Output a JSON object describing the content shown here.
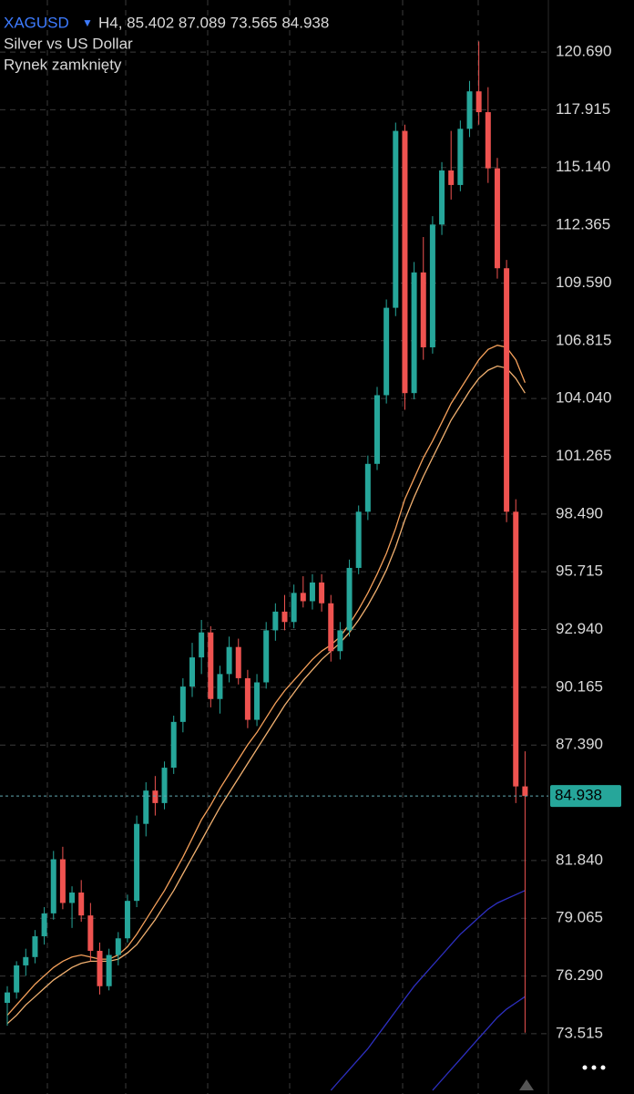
{
  "chart_data": {
    "type": "candlestick",
    "symbol": "XAGUSD",
    "header": "H4, 85.402 87.089 73.565 84.938",
    "title": "Silver vs US Dollar",
    "status": "Rynek zamknięty",
    "up_color": "#26a69a",
    "down_color": "#ef5350",
    "ylim": [
      70.62,
      123.19
    ],
    "yticks": [
      {
        "value": 120.69,
        "label": "120.690"
      },
      {
        "value": 117.915,
        "label": "117.915"
      },
      {
        "value": 115.14,
        "label": "115.140"
      },
      {
        "value": 112.365,
        "label": "112.365"
      },
      {
        "value": 109.59,
        "label": "109.590"
      },
      {
        "value": 106.815,
        "label": "106.815"
      },
      {
        "value": 104.04,
        "label": "104.040"
      },
      {
        "value": 101.265,
        "label": "101.265"
      },
      {
        "value": 98.49,
        "label": "98.490"
      },
      {
        "value": 95.715,
        "label": "95.715"
      },
      {
        "value": 92.94,
        "label": "92.940"
      },
      {
        "value": 90.165,
        "label": "90.165"
      },
      {
        "value": 87.39,
        "label": "87.390"
      },
      {
        "value": 81.84,
        "label": "81.840"
      },
      {
        "value": 79.065,
        "label": "79.065"
      },
      {
        "value": 76.29,
        "label": "76.290"
      },
      {
        "value": 73.515,
        "label": "73.515"
      }
    ],
    "grid": true,
    "last_price": 84.938,
    "ohlc": [
      [
        75.0,
        75.8,
        73.9,
        75.5
      ],
      [
        75.5,
        77.0,
        75.2,
        76.8
      ],
      [
        76.8,
        77.6,
        76.3,
        77.2
      ],
      [
        77.2,
        78.5,
        76.9,
        78.2
      ],
      [
        78.2,
        79.6,
        77.8,
        79.3
      ],
      [
        79.3,
        82.3,
        79.0,
        81.9
      ],
      [
        81.9,
        82.5,
        79.5,
        79.8
      ],
      [
        79.8,
        80.6,
        78.6,
        80.3
      ],
      [
        80.3,
        80.9,
        78.9,
        79.2
      ],
      [
        79.2,
        79.8,
        77.0,
        77.5
      ],
      [
        77.5,
        77.9,
        75.4,
        75.8
      ],
      [
        75.8,
        77.6,
        75.6,
        77.3
      ],
      [
        77.3,
        78.4,
        76.8,
        78.1
      ],
      [
        78.1,
        80.2,
        77.9,
        79.9
      ],
      [
        79.9,
        84.0,
        79.6,
        83.6
      ],
      [
        83.6,
        85.6,
        83.0,
        85.2
      ],
      [
        85.2,
        85.9,
        84.0,
        84.6
      ],
      [
        84.6,
        86.6,
        84.3,
        86.3
      ],
      [
        86.3,
        88.8,
        86.0,
        88.5
      ],
      [
        88.5,
        90.6,
        88.0,
        90.2
      ],
      [
        90.2,
        92.3,
        89.7,
        91.6
      ],
      [
        91.6,
        93.4,
        90.8,
        92.8
      ],
      [
        92.8,
        93.1,
        89.2,
        89.6
      ],
      [
        89.6,
        91.2,
        88.9,
        90.8
      ],
      [
        90.8,
        92.6,
        90.4,
        92.1
      ],
      [
        92.1,
        92.5,
        90.3,
        90.6
      ],
      [
        90.6,
        91.0,
        88.2,
        88.6
      ],
      [
        88.6,
        90.8,
        88.3,
        90.4
      ],
      [
        90.4,
        93.3,
        90.1,
        92.9
      ],
      [
        92.9,
        94.2,
        92.4,
        93.8
      ],
      [
        93.8,
        94.6,
        92.9,
        93.3
      ],
      [
        93.3,
        95.1,
        93.0,
        94.7
      ],
      [
        94.7,
        95.5,
        94.0,
        94.3
      ],
      [
        94.3,
        95.6,
        93.9,
        95.2
      ],
      [
        95.2,
        95.6,
        93.8,
        94.2
      ],
      [
        94.2,
        94.6,
        91.4,
        91.9
      ],
      [
        91.9,
        93.3,
        91.5,
        92.9
      ],
      [
        92.9,
        96.3,
        92.6,
        95.9
      ],
      [
        95.9,
        98.9,
        95.6,
        98.6
      ],
      [
        98.6,
        101.3,
        98.2,
        100.9
      ],
      [
        100.9,
        104.6,
        100.6,
        104.2
      ],
      [
        104.2,
        108.8,
        103.8,
        108.4
      ],
      [
        108.4,
        117.3,
        108.0,
        116.9
      ],
      [
        116.9,
        117.2,
        103.5,
        104.3
      ],
      [
        104.3,
        110.6,
        104.0,
        110.1
      ],
      [
        110.1,
        111.8,
        105.9,
        106.5
      ],
      [
        106.5,
        112.8,
        106.2,
        112.4
      ],
      [
        112.4,
        115.4,
        111.9,
        115.0
      ],
      [
        115.0,
        116.9,
        113.6,
        114.3
      ],
      [
        114.3,
        117.4,
        114.0,
        117.0
      ],
      [
        117.0,
        119.3,
        116.6,
        118.8
      ],
      [
        118.8,
        121.2,
        117.2,
        117.8
      ],
      [
        117.8,
        119.0,
        114.4,
        115.1
      ],
      [
        115.1,
        115.6,
        109.8,
        110.3
      ],
      [
        110.3,
        110.7,
        98.1,
        98.6
      ],
      [
        98.6,
        99.2,
        84.6,
        85.4
      ],
      [
        85.402,
        87.089,
        73.565,
        84.938
      ]
    ],
    "lines": [
      {
        "color": "#f5a05a",
        "values": [
          74.4,
          74.9,
          75.4,
          75.9,
          76.3,
          76.7,
          77.0,
          77.2,
          77.3,
          77.2,
          77.1,
          77.1,
          77.3,
          77.7,
          78.3,
          79.0,
          79.7,
          80.4,
          81.2,
          82.0,
          82.9,
          83.8,
          84.5,
          85.3,
          86.0,
          86.7,
          87.4,
          88.0,
          88.7,
          89.4,
          90.0,
          90.5,
          91.0,
          91.5,
          91.9,
          92.2,
          92.6,
          93.2,
          93.9,
          94.7,
          95.6,
          96.6,
          97.8,
          99.2,
          100.2,
          101.2,
          102.0,
          102.9,
          103.8,
          104.5,
          105.2,
          105.9,
          106.4,
          106.6,
          106.5,
          105.9,
          104.8
        ]
      },
      {
        "color": "#f0b070",
        "values": [
          74.0,
          74.4,
          74.9,
          75.3,
          75.7,
          76.1,
          76.4,
          76.7,
          76.9,
          77.0,
          77.0,
          77.0,
          77.1,
          77.4,
          77.8,
          78.4,
          79.0,
          79.7,
          80.4,
          81.2,
          82.0,
          82.8,
          83.6,
          84.4,
          85.1,
          85.8,
          86.5,
          87.2,
          87.9,
          88.6,
          89.3,
          89.9,
          90.5,
          91.0,
          91.5,
          91.9,
          92.3,
          92.8,
          93.4,
          94.1,
          94.9,
          95.8,
          96.9,
          98.2,
          99.3,
          100.3,
          101.2,
          102.1,
          103.0,
          103.7,
          104.4,
          105.0,
          105.4,
          105.6,
          105.5,
          105.0,
          104.3
        ]
      },
      {
        "color": "#2d2fc0",
        "values": [
          null,
          null,
          null,
          null,
          null,
          null,
          null,
          null,
          null,
          null,
          null,
          null,
          null,
          null,
          null,
          null,
          null,
          null,
          null,
          null,
          null,
          null,
          null,
          null,
          null,
          null,
          null,
          null,
          null,
          null,
          null,
          null,
          null,
          null,
          null,
          70.8,
          71.3,
          71.8,
          72.3,
          72.8,
          73.4,
          74.0,
          74.6,
          75.2,
          75.8,
          76.3,
          76.8,
          77.3,
          77.8,
          78.3,
          78.7,
          79.1,
          79.5,
          79.8,
          80.0,
          80.2,
          80.4
        ]
      },
      {
        "color": "#2d2fc0",
        "values": [
          null,
          null,
          null,
          null,
          null,
          null,
          null,
          null,
          null,
          null,
          null,
          null,
          null,
          null,
          null,
          null,
          null,
          null,
          null,
          null,
          null,
          null,
          null,
          null,
          null,
          null,
          null,
          null,
          null,
          null,
          null,
          null,
          null,
          null,
          null,
          null,
          null,
          null,
          null,
          null,
          null,
          null,
          null,
          null,
          null,
          null,
          70.8,
          71.3,
          71.8,
          72.3,
          72.8,
          73.3,
          73.8,
          74.3,
          74.7,
          75.0,
          75.3
        ]
      }
    ]
  }
}
